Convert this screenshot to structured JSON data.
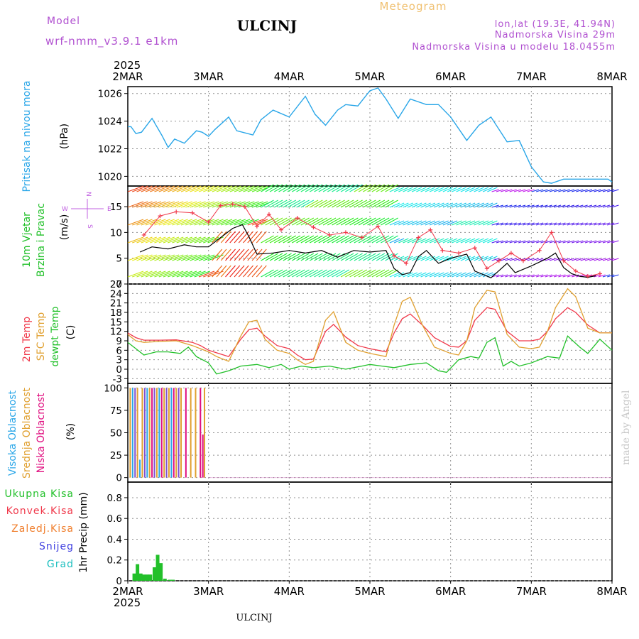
{
  "header": {
    "model_label": "Model",
    "model_name": "wrf-nmm_v3.9.1  e1km",
    "station_title": "ULCINJ",
    "meteogram_label": "Meteogram",
    "coords": "lon,lat (19.3E, 41.94N)",
    "altitude": "Nadmorska Visina 29m",
    "model_altitude": "Nadmorska Visina u modelu 18.0455m",
    "year_top": "2025",
    "year_bottom": "2025",
    "footer_station": "ULCINJ",
    "credit": "made by Angel"
  },
  "colors": {
    "pressure": "#29a6e8",
    "wind_label": "#22c02a",
    "wind_dir_label": "#c060e0",
    "temp2m": "#f0384a",
    "sfc": "#e0a030",
    "dewpt": "#22c02a",
    "cloud_high": "#29a6e8",
    "cloud_mid": "#e0a030",
    "cloud_low": "#e01080",
    "cloud_legend_mid": "#8050d0",
    "precip_total": "#22c02a",
    "precip_conv": "#f0384a",
    "precip_frozen": "#f08030",
    "snow": "#4040e0",
    "graupel": "#20c0c0",
    "header_purple": "#b050d0",
    "meteogram_orange": "#f0c070",
    "grid": "#909090"
  },
  "chart_data": [
    {
      "type": "line",
      "title": "",
      "ylabel": [
        "Pritisak na nivou mora",
        "(hPa)"
      ],
      "x_ticks": [
        "2MAR",
        "3MAR",
        "4MAR",
        "5MAR",
        "6MAR",
        "7MAR",
        "8MAR"
      ],
      "y_ticks": [
        1020,
        1022,
        1024,
        1026
      ],
      "xlim": [
        0,
        6
      ],
      "ylim": [
        1019.3,
        1026.5
      ],
      "grid": true,
      "series": [
        {
          "color_key": "pressure",
          "x": [
            0,
            0.04,
            0.1,
            0.17,
            0.3,
            0.42,
            0.5,
            0.58,
            0.7,
            0.85,
            0.92,
            1.0,
            1.08,
            1.25,
            1.35,
            1.55,
            1.65,
            1.8,
            2.0,
            2.2,
            2.32,
            2.45,
            2.6,
            2.7,
            2.85,
            3.0,
            3.1,
            3.2,
            3.35,
            3.5,
            3.7,
            3.85,
            4.0,
            4.2,
            4.35,
            4.5,
            4.7,
            4.85,
            5.0,
            5.15,
            5.25,
            5.4,
            5.5,
            5.62,
            5.72,
            5.85,
            5.95,
            6.0
          ],
          "y": [
            1023.6,
            1023.6,
            1023.1,
            1023.2,
            1024.2,
            1023.0,
            1022.1,
            1022.7,
            1022.4,
            1023.3,
            1023.2,
            1022.9,
            1023.4,
            1024.3,
            1023.3,
            1023.0,
            1024.1,
            1024.8,
            1024.3,
            1025.8,
            1024.5,
            1023.7,
            1024.8,
            1025.2,
            1025.1,
            1026.2,
            1026.4,
            1025.6,
            1024.2,
            1025.6,
            1025.2,
            1025.2,
            1024.3,
            1022.6,
            1023.7,
            1024.3,
            1022.5,
            1022.6,
            1020.7,
            1019.6,
            1019.5,
            1019.8,
            1019.8,
            1019.8,
            1019.8,
            1019.8,
            1019.8,
            1019.6
          ]
        }
      ]
    },
    {
      "type": "line",
      "title": "",
      "ylabel": [
        "10m Vjetar",
        "Brzina i Pravac",
        "(m/s)"
      ],
      "direction_legend": {
        "n": "N",
        "e": "E",
        "w": "W",
        "s": "S"
      },
      "y_ticks": [
        0,
        5,
        10,
        15
      ],
      "xlim": [
        0,
        6
      ],
      "ylim": [
        0,
        19
      ],
      "grid": true,
      "series": [
        {
          "name": "speed",
          "color": "#000000",
          "x": [
            0.15,
            0.3,
            0.5,
            0.7,
            0.85,
            1.0,
            1.15,
            1.3,
            1.42,
            1.5,
            1.6,
            1.8,
            2.0,
            2.2,
            2.4,
            2.6,
            2.8,
            3.0,
            3.2,
            3.3,
            3.4,
            3.5,
            3.6,
            3.7,
            3.85,
            4.0,
            4.2,
            4.3,
            4.5,
            4.7,
            4.8,
            5.0,
            5.2,
            5.3,
            5.4,
            5.5,
            5.6,
            5.7,
            5.8
          ],
          "y": [
            6.2,
            7.2,
            6.8,
            7.6,
            7.2,
            7.2,
            9.0,
            10.8,
            11.5,
            9.2,
            5.8,
            6.0,
            6.5,
            6.0,
            6.5,
            5.2,
            6.5,
            6.2,
            6.5,
            3.0,
            1.8,
            2.2,
            5.3,
            6.5,
            4.0,
            5.0,
            5.8,
            2.5,
            1.2,
            4.0,
            2.2,
            3.5,
            5.0,
            6.0,
            3.2,
            2.0,
            1.5,
            1.3,
            1.6
          ]
        },
        {
          "name": "gusts",
          "color": "#f0384a",
          "x": [
            0.2,
            0.4,
            0.6,
            0.8,
            1.0,
            1.15,
            1.3,
            1.45,
            1.6,
            1.75,
            1.9,
            2.1,
            2.3,
            2.5,
            2.7,
            2.9,
            3.1,
            3.3,
            3.45,
            3.6,
            3.75,
            3.9,
            4.1,
            4.3,
            4.45,
            4.6,
            4.75,
            4.9,
            5.1,
            5.25,
            5.4,
            5.55,
            5.7,
            5.85
          ],
          "y": [
            9.5,
            13.2,
            14.0,
            13.8,
            12.0,
            15.2,
            15.5,
            15.0,
            11.2,
            13.5,
            10.5,
            12.8,
            11.0,
            9.5,
            10.0,
            9.0,
            11.2,
            5.5,
            4.0,
            9.0,
            10.5,
            6.5,
            6.0,
            7.0,
            3.0,
            4.5,
            6.0,
            4.5,
            6.5,
            10.0,
            4.5,
            2.5,
            1.5,
            2.0
          ]
        }
      ]
    },
    {
      "type": "line",
      "title": "",
      "ylabel": [
        "2m Temp",
        "SFC Temp",
        "dewpt Temp",
        "(C)"
      ],
      "y_ticks": [
        -3,
        0,
        3,
        6,
        9,
        12,
        15,
        18,
        21,
        24,
        27
      ],
      "xlim": [
        0,
        6
      ],
      "ylim": [
        -4.5,
        27
      ],
      "grid": true,
      "series": [
        {
          "name": "2m Temp",
          "color_key": "temp2m",
          "x": [
            0,
            0.1,
            0.2,
            0.4,
            0.6,
            0.8,
            0.9,
            1.0,
            1.1,
            1.25,
            1.4,
            1.5,
            1.6,
            1.7,
            1.85,
            2.0,
            2.1,
            2.2,
            2.3,
            2.45,
            2.55,
            2.7,
            2.85,
            3.0,
            3.1,
            3.2,
            3.3,
            3.4,
            3.5,
            3.65,
            3.8,
            4.0,
            4.1,
            4.2,
            4.3,
            4.45,
            4.55,
            4.7,
            4.85,
            5.0,
            5.1,
            5.2,
            5.3,
            5.45,
            5.55,
            5.7,
            5.85,
            6.0
          ],
          "y": [
            11.5,
            10.0,
            9.2,
            9.2,
            9.3,
            8.5,
            7.5,
            6.0,
            5.2,
            4.0,
            9.5,
            12.5,
            13.0,
            10.5,
            7.5,
            6.5,
            4.5,
            3.0,
            3.2,
            12.0,
            14.2,
            10.2,
            7.5,
            6.5,
            6.0,
            5.5,
            11.5,
            16.0,
            17.5,
            14.0,
            10.0,
            7.2,
            7.0,
            9.0,
            15.5,
            19.5,
            19.0,
            12.0,
            9.0,
            9.0,
            9.5,
            12.0,
            16.0,
            19.5,
            18.0,
            14.0,
            11.5,
            11.5
          ]
        },
        {
          "name": "SFC Temp",
          "color_key": "sfc",
          "x": [
            0,
            0.1,
            0.2,
            0.4,
            0.6,
            0.8,
            0.9,
            1.0,
            1.1,
            1.25,
            1.4,
            1.5,
            1.6,
            1.7,
            1.85,
            2.0,
            2.1,
            2.2,
            2.3,
            2.45,
            2.55,
            2.7,
            2.85,
            3.0,
            3.1,
            3.2,
            3.3,
            3.4,
            3.5,
            3.65,
            3.8,
            4.0,
            4.1,
            4.2,
            4.3,
            4.45,
            4.55,
            4.7,
            4.85,
            5.0,
            5.1,
            5.2,
            5.3,
            5.45,
            5.55,
            5.7,
            5.85,
            6.0
          ],
          "y": [
            11.0,
            9.0,
            8.5,
            8.8,
            9.0,
            7.5,
            6.5,
            5.5,
            4.0,
            2.5,
            10.5,
            15.0,
            15.5,
            9.5,
            6.0,
            5.0,
            3.0,
            1.5,
            2.5,
            15.5,
            18.2,
            8.5,
            6.0,
            5.0,
            4.5,
            4.0,
            14.0,
            21.5,
            22.8,
            14.0,
            7.0,
            5.0,
            4.5,
            9.0,
            19.5,
            25.0,
            24.5,
            11.0,
            7.0,
            6.5,
            7.0,
            12.0,
            19.5,
            25.5,
            23.0,
            13.0,
            11.5,
            11.5
          ]
        },
        {
          "name": "dewpt Temp",
          "color_key": "dewpt",
          "x": [
            0,
            0.1,
            0.2,
            0.35,
            0.5,
            0.65,
            0.75,
            0.85,
            1.0,
            1.1,
            1.25,
            1.4,
            1.6,
            1.75,
            1.9,
            2.0,
            2.15,
            2.3,
            2.5,
            2.7,
            2.9,
            3.0,
            3.15,
            3.3,
            3.5,
            3.7,
            3.85,
            3.95,
            4.1,
            4.25,
            4.35,
            4.45,
            4.55,
            4.65,
            4.75,
            4.85,
            5.0,
            5.2,
            5.35,
            5.45,
            5.6,
            5.7,
            5.85,
            6.0
          ],
          "y": [
            8.5,
            6.5,
            4.5,
            5.5,
            5.5,
            5.0,
            7.0,
            4.0,
            2.0,
            -1.5,
            -0.5,
            1.0,
            1.5,
            0.5,
            1.5,
            0.0,
            1.0,
            0.5,
            1.0,
            0.0,
            1.0,
            1.5,
            1.0,
            0.5,
            1.5,
            2.0,
            -0.5,
            -1.0,
            3.0,
            4.0,
            3.5,
            8.5,
            10.0,
            1.0,
            2.5,
            1.0,
            2.0,
            4.0,
            3.5,
            10.5,
            7.0,
            5.0,
            9.5,
            6.0
          ]
        }
      ]
    },
    {
      "type": "bar",
      "title": "",
      "ylabel": [
        "Visoka Oblacnost",
        "Srednja Oblacnost",
        "Niska Oblacnost",
        "(%)"
      ],
      "y_ticks": [
        0,
        25,
        50,
        75,
        100
      ],
      "xlim": [
        0,
        6
      ],
      "ylim": [
        -5,
        105
      ],
      "grid": true,
      "bars": [
        {
          "x": 0.03,
          "value": 100,
          "color_key": "cloud_mid"
        },
        {
          "x": 0.06,
          "value": 100,
          "color_key": "cloud_high"
        },
        {
          "x": 0.09,
          "value": 100,
          "color_key": "cloud_legend_mid"
        },
        {
          "x": 0.12,
          "value": 100,
          "color_key": "cloud_mid"
        },
        {
          "x": 0.15,
          "value": 20,
          "color_key": "cloud_high"
        },
        {
          "x": 0.18,
          "value": 100,
          "color_key": "cloud_mid"
        },
        {
          "x": 0.21,
          "value": 100,
          "color_key": "cloud_legend_mid"
        },
        {
          "x": 0.24,
          "value": 100,
          "color_key": "cloud_high"
        },
        {
          "x": 0.27,
          "value": 100,
          "color_key": "cloud_mid"
        },
        {
          "x": 0.3,
          "value": 100,
          "color_key": "cloud_low"
        },
        {
          "x": 0.33,
          "value": 100,
          "color_key": "cloud_legend_mid"
        },
        {
          "x": 0.36,
          "value": 100,
          "color_key": "cloud_mid"
        },
        {
          "x": 0.39,
          "value": 100,
          "color_key": "cloud_high"
        },
        {
          "x": 0.42,
          "value": 100,
          "color_key": "cloud_low"
        },
        {
          "x": 0.45,
          "value": 100,
          "color_key": "cloud_mid"
        },
        {
          "x": 0.48,
          "value": 100,
          "color_key": "cloud_legend_mid"
        },
        {
          "x": 0.51,
          "value": 100,
          "color_key": "cloud_mid"
        },
        {
          "x": 0.54,
          "value": 100,
          "color_key": "cloud_high"
        },
        {
          "x": 0.57,
          "value": 100,
          "color_key": "cloud_low"
        },
        {
          "x": 0.6,
          "value": 100,
          "color_key": "cloud_mid"
        },
        {
          "x": 0.63,
          "value": 100,
          "color_key": "cloud_legend_mid"
        },
        {
          "x": 0.66,
          "value": 100,
          "color_key": "cloud_mid"
        },
        {
          "x": 0.72,
          "value": 100,
          "color_key": "cloud_low"
        },
        {
          "x": 0.78,
          "value": 100,
          "color_key": "cloud_mid"
        },
        {
          "x": 0.84,
          "value": 100,
          "color_key": "cloud_mid"
        },
        {
          "x": 0.9,
          "value": 100,
          "color_key": "cloud_low"
        },
        {
          "x": 0.93,
          "value": 48,
          "color_key": "cloud_low"
        },
        {
          "x": 0.95,
          "value": 100,
          "color_key": "cloud_mid"
        }
      ]
    },
    {
      "type": "bar",
      "title": "",
      "ylabel": [
        "1hr Precip (mm)"
      ],
      "legend": [
        "Ukupna Kisa",
        "Konvek.Kisa",
        "Zaledj.Kisa",
        "Snijeg",
        "Grad"
      ],
      "y_ticks": [
        0,
        0.2,
        0.4,
        0.6,
        0.8
      ],
      "y_tick_labels": [
        "0",
        "0.2",
        "0.4",
        "0.6",
        "0.8"
      ],
      "x_ticks": [
        "2MAR",
        "3MAR",
        "4MAR",
        "5MAR",
        "6MAR",
        "7MAR",
        "8MAR"
      ],
      "xlim": [
        0,
        6
      ],
      "ylim": [
        0,
        0.95
      ],
      "grid": true,
      "bars": [
        {
          "x": 0.08,
          "value": 0.07
        },
        {
          "x": 0.12,
          "value": 0.16
        },
        {
          "x": 0.16,
          "value": 0.07
        },
        {
          "x": 0.2,
          "value": 0.06
        },
        {
          "x": 0.24,
          "value": 0.06
        },
        {
          "x": 0.28,
          "value": 0.06
        },
        {
          "x": 0.33,
          "value": 0.13
        },
        {
          "x": 0.37,
          "value": 0.25
        },
        {
          "x": 0.41,
          "value": 0.17
        },
        {
          "x": 0.46,
          "value": 0.02
        },
        {
          "x": 0.52,
          "value": 0.01
        },
        {
          "x": 0.56,
          "value": 0.01
        }
      ]
    }
  ]
}
